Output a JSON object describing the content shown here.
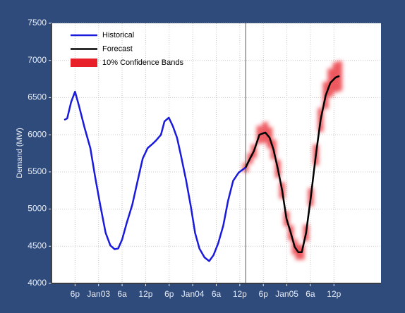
{
  "chart_data": {
    "type": "line",
    "ylabel": "Demand (MW)",
    "xlim": [
      -12,
      72
    ],
    "xticks": [
      {
        "value": -6,
        "label": "6p"
      },
      {
        "value": 0,
        "label": "Jan03"
      },
      {
        "value": 6,
        "label": "6a"
      },
      {
        "value": 12,
        "label": "12p"
      },
      {
        "value": 18,
        "label": "6p"
      },
      {
        "value": 24,
        "label": "Jan04"
      },
      {
        "value": 30,
        "label": "6a"
      },
      {
        "value": 36,
        "label": "12p"
      },
      {
        "value": 42,
        "label": "6p"
      },
      {
        "value": 48,
        "label": "Jan05"
      },
      {
        "value": 54,
        "label": "6a"
      },
      {
        "value": 60,
        "label": "12p"
      }
    ],
    "ylim": [
      4000,
      7500
    ],
    "yticks": [
      4000,
      4500,
      5000,
      5500,
      6000,
      6500,
      7000,
      7500
    ],
    "grid": true,
    "legend": "upper left",
    "series": [
      {
        "name": "Historical",
        "color": "#1a1adc",
        "x": [
          -8.75,
          -8,
          -7,
          -6,
          -5,
          -3.6,
          -2.1,
          -0.9,
          0.4,
          1.8,
          3,
          4.1,
          5,
          6,
          7.1,
          8.6,
          10,
          11.25,
          12.5,
          13.6,
          14.6,
          15.9,
          16.8,
          17.9,
          18.9,
          20,
          21,
          22.3,
          23.6,
          24.6,
          25.7,
          27,
          28.2,
          29.3,
          30.5,
          31.8,
          33,
          34.3,
          35.7,
          37.5
        ],
        "values": [
          6200,
          6220,
          6440,
          6580,
          6390,
          6100,
          5820,
          5440,
          5060,
          4680,
          4510,
          4460,
          4470,
          4590,
          4800,
          5060,
          5390,
          5680,
          5820,
          5870,
          5920,
          6000,
          6180,
          6230,
          6120,
          5960,
          5720,
          5390,
          5010,
          4680,
          4470,
          4350,
          4300,
          4380,
          4540,
          4780,
          5110,
          5380,
          5490,
          5560
        ]
      },
      {
        "name": "Forecast",
        "color": "#000000",
        "x": [
          37.5,
          38.6,
          39.6,
          41,
          42.5,
          43.6,
          44.6,
          45.7,
          46.8,
          47.9,
          49,
          50,
          50.9,
          51.8,
          52.9,
          54.1,
          55.4,
          56.6,
          57.9,
          59.1,
          60.4,
          61.4
        ],
        "values": [
          5560,
          5680,
          5780,
          6000,
          6030,
          5960,
          5800,
          5540,
          5250,
          4870,
          4680,
          4490,
          4420,
          4420,
          4680,
          5160,
          5730,
          6200,
          6530,
          6700,
          6770,
          6790
        ]
      },
      {
        "name": "10% Confidence Bands",
        "color": "#e8202a",
        "lower": [
          5500,
          5610,
          5690,
          5880,
          5890,
          5820,
          5670,
          5420,
          5140,
          4770,
          4580,
          4390,
          4320,
          4320,
          4570,
          5040,
          5590,
          6040,
          6350,
          6510,
          6570,
          6590
        ],
        "upper": [
          5620,
          5750,
          5870,
          6120,
          6170,
          6100,
          5930,
          5660,
          5360,
          4970,
          4780,
          4590,
          4520,
          4520,
          4790,
          5280,
          5870,
          6360,
          6710,
          6890,
          6970,
          6990
        ]
      }
    ]
  }
}
